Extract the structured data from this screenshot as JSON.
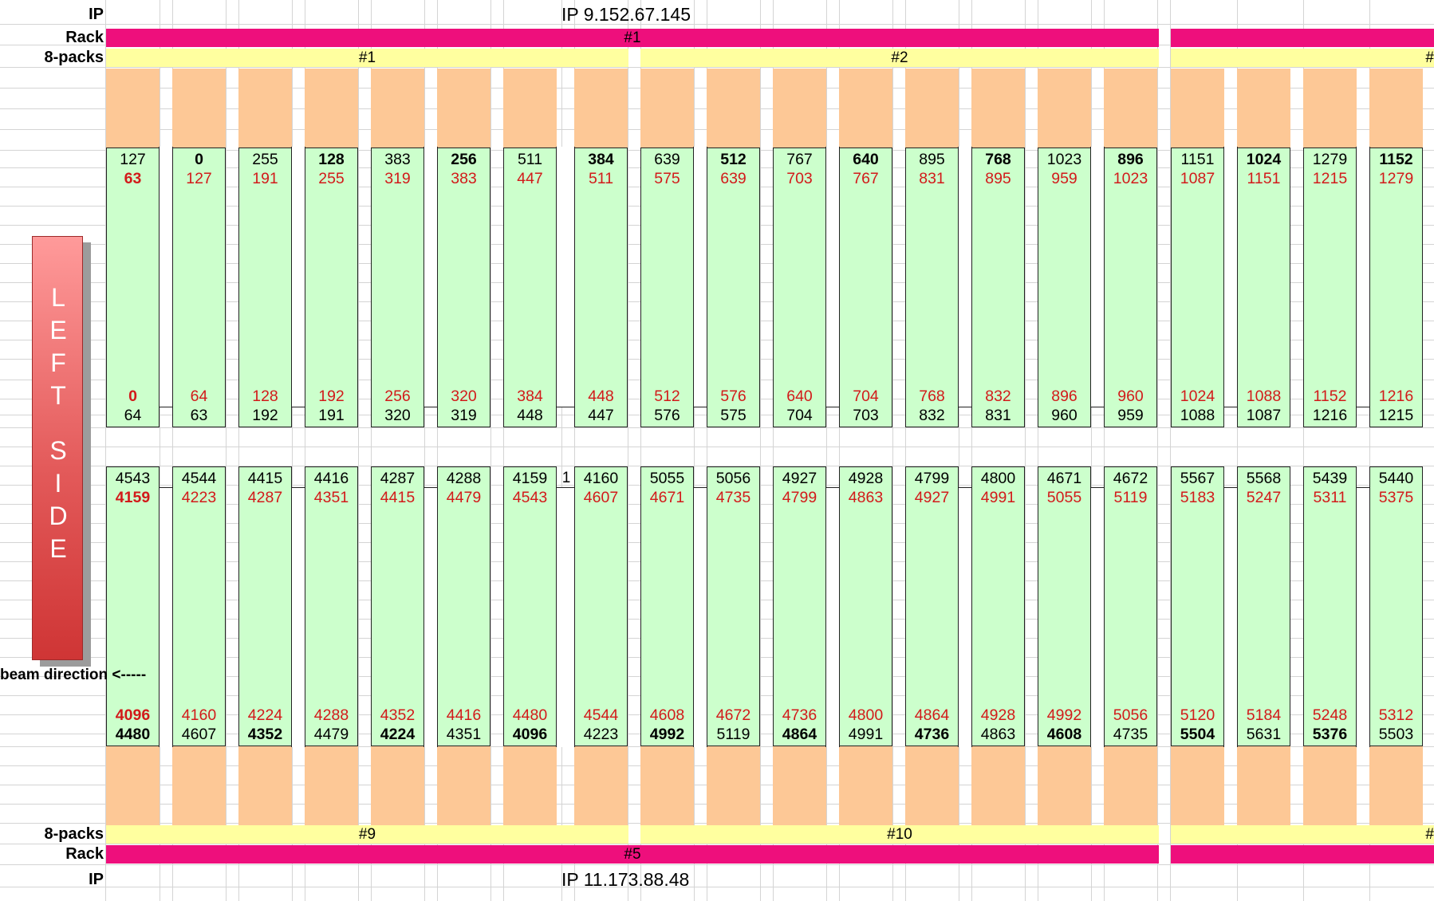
{
  "top": {
    "ip_label": "IP",
    "ip_value": "IP 9.152.67.145",
    "rack_label": "Rack",
    "rack_values": [
      "#1",
      ""
    ],
    "packs_label": "8-packs",
    "packs_values": [
      "#1",
      "#2",
      "#"
    ]
  },
  "bottom": {
    "ip_label": "IP",
    "ip_value": "IP 11.173.88.48",
    "rack_label": "Rack",
    "rack_values": [
      "#5",
      ""
    ],
    "packs_label": "8-packs",
    "packs_values": [
      "#9",
      "#10",
      "#"
    ]
  },
  "left_side_label": "LEFT SIDE",
  "beam_direction": "beam direction <-----",
  "colors": {
    "rack": "#ee0f7c",
    "eight_pack": "#ffff9f",
    "slot": "#ccffcc",
    "orange": "#fdc896",
    "red_text": "#d21a1a"
  },
  "upper_slots": [
    {
      "top": "127",
      "top_red": "63",
      "bot_red": "0",
      "bot": "64",
      "bold_top": false,
      "bold_top_red": true,
      "bold_bot_red": true,
      "bold_bot": false
    },
    {
      "top": "0",
      "top_red": "127",
      "bot_red": "64",
      "bot": "63",
      "bold_top": true,
      "bold_top_red": false,
      "bold_bot_red": false,
      "bold_bot": false
    },
    {
      "top": "255",
      "top_red": "191",
      "bot_red": "128",
      "bot": "192",
      "bold_top": false,
      "bold_top_red": false,
      "bold_bot_red": false,
      "bold_bot": false
    },
    {
      "top": "128",
      "top_red": "255",
      "bot_red": "192",
      "bot": "191",
      "bold_top": true,
      "bold_top_red": false,
      "bold_bot_red": false,
      "bold_bot": false
    },
    {
      "top": "383",
      "top_red": "319",
      "bot_red": "256",
      "bot": "320",
      "bold_top": false,
      "bold_top_red": false,
      "bold_bot_red": false,
      "bold_bot": false
    },
    {
      "top": "256",
      "top_red": "383",
      "bot_red": "320",
      "bot": "319",
      "bold_top": true,
      "bold_top_red": false,
      "bold_bot_red": false,
      "bold_bot": false
    },
    {
      "top": "511",
      "top_red": "447",
      "bot_red": "384",
      "bot": "448",
      "bold_top": false,
      "bold_top_red": false,
      "bold_bot_red": false,
      "bold_bot": false
    },
    {
      "top": "384",
      "top_red": "511",
      "bot_red": "448",
      "bot": "447",
      "bold_top": true,
      "bold_top_red": false,
      "bold_bot_red": false,
      "bold_bot": false
    },
    {
      "top": "639",
      "top_red": "575",
      "bot_red": "512",
      "bot": "576",
      "bold_top": false,
      "bold_top_red": false,
      "bold_bot_red": false,
      "bold_bot": false
    },
    {
      "top": "512",
      "top_red": "639",
      "bot_red": "576",
      "bot": "575",
      "bold_top": true,
      "bold_top_red": false,
      "bold_bot_red": false,
      "bold_bot": false
    },
    {
      "top": "767",
      "top_red": "703",
      "bot_red": "640",
      "bot": "704",
      "bold_top": false,
      "bold_top_red": false,
      "bold_bot_red": false,
      "bold_bot": false
    },
    {
      "top": "640",
      "top_red": "767",
      "bot_red": "704",
      "bot": "703",
      "bold_top": true,
      "bold_top_red": false,
      "bold_bot_red": false,
      "bold_bot": false
    },
    {
      "top": "895",
      "top_red": "831",
      "bot_red": "768",
      "bot": "832",
      "bold_top": false,
      "bold_top_red": false,
      "bold_bot_red": false,
      "bold_bot": false
    },
    {
      "top": "768",
      "top_red": "895",
      "bot_red": "832",
      "bot": "831",
      "bold_top": true,
      "bold_top_red": false,
      "bold_bot_red": false,
      "bold_bot": false
    },
    {
      "top": "1023",
      "top_red": "959",
      "bot_red": "896",
      "bot": "960",
      "bold_top": false,
      "bold_top_red": false,
      "bold_bot_red": false,
      "bold_bot": false
    },
    {
      "top": "896",
      "top_red": "1023",
      "bot_red": "960",
      "bot": "959",
      "bold_top": true,
      "bold_top_red": false,
      "bold_bot_red": false,
      "bold_bot": false
    },
    {
      "top": "1151",
      "top_red": "1087",
      "bot_red": "1024",
      "bot": "1088",
      "bold_top": false,
      "bold_top_red": false,
      "bold_bot_red": false,
      "bold_bot": false
    },
    {
      "top": "1024",
      "top_red": "1151",
      "bot_red": "1088",
      "bot": "1087",
      "bold_top": true,
      "bold_top_red": false,
      "bold_bot_red": false,
      "bold_bot": false
    },
    {
      "top": "1279",
      "top_red": "1215",
      "bot_red": "1152",
      "bot": "1216",
      "bold_top": false,
      "bold_top_red": false,
      "bold_bot_red": false,
      "bold_bot": false
    },
    {
      "top": "1152",
      "top_red": "1279",
      "bot_red": "1216",
      "bot": "1215",
      "bold_top": true,
      "bold_top_red": false,
      "bold_bot_red": false,
      "bold_bot": false
    }
  ],
  "lower_slots": [
    {
      "top": "4543",
      "top_red": "4159",
      "bot_red": "4096",
      "bot": "4480",
      "bold_top": false,
      "bold_top_red": true,
      "bold_bot_red": true,
      "bold_bot": true
    },
    {
      "top": "4544",
      "top_red": "4223",
      "bot_red": "4160",
      "bot": "4607",
      "bold_top": false,
      "bold_top_red": false,
      "bold_bot_red": false,
      "bold_bot": false
    },
    {
      "top": "4415",
      "top_red": "4287",
      "bot_red": "4224",
      "bot": "4352",
      "bold_top": false,
      "bold_top_red": false,
      "bold_bot_red": false,
      "bold_bot": true
    },
    {
      "top": "4416",
      "top_red": "4351",
      "bot_red": "4288",
      "bot": "4479",
      "bold_top": false,
      "bold_top_red": false,
      "bold_bot_red": false,
      "bold_bot": false
    },
    {
      "top": "4287",
      "top_red": "4415",
      "bot_red": "4352",
      "bot": "4224",
      "bold_top": false,
      "bold_top_red": false,
      "bold_bot_red": false,
      "bold_bot": true
    },
    {
      "top": "4288",
      "top_red": "4479",
      "bot_red": "4416",
      "bot": "4351",
      "bold_top": false,
      "bold_top_red": false,
      "bold_bot_red": false,
      "bold_bot": false
    },
    {
      "top": "4159",
      "top_red": "4543",
      "bot_red": "4480",
      "bot": "4096",
      "bold_top": false,
      "bold_top_red": false,
      "bold_bot_red": false,
      "bold_bot": true
    },
    {
      "top": "4160",
      "top_red": "4607",
      "bot_red": "4544",
      "bot": "4223",
      "bold_top": false,
      "bold_top_red": false,
      "bold_bot_red": false,
      "bold_bot": false
    },
    {
      "top": "5055",
      "top_red": "4671",
      "bot_red": "4608",
      "bot": "4992",
      "bold_top": false,
      "bold_top_red": false,
      "bold_bot_red": false,
      "bold_bot": true
    },
    {
      "top": "5056",
      "top_red": "4735",
      "bot_red": "4672",
      "bot": "5119",
      "bold_top": false,
      "bold_top_red": false,
      "bold_bot_red": false,
      "bold_bot": false
    },
    {
      "top": "4927",
      "top_red": "4799",
      "bot_red": "4736",
      "bot": "4864",
      "bold_top": false,
      "bold_top_red": false,
      "bold_bot_red": false,
      "bold_bot": true
    },
    {
      "top": "4928",
      "top_red": "4863",
      "bot_red": "4800",
      "bot": "4991",
      "bold_top": false,
      "bold_top_red": false,
      "bold_bot_red": false,
      "bold_bot": false
    },
    {
      "top": "4799",
      "top_red": "4927",
      "bot_red": "4864",
      "bot": "4736",
      "bold_top": false,
      "bold_top_red": false,
      "bold_bot_red": false,
      "bold_bot": true
    },
    {
      "top": "4800",
      "top_red": "4991",
      "bot_red": "4928",
      "bot": "4863",
      "bold_top": false,
      "bold_top_red": false,
      "bold_bot_red": false,
      "bold_bot": false
    },
    {
      "top": "4671",
      "top_red": "5055",
      "bot_red": "4992",
      "bot": "4608",
      "bold_top": false,
      "bold_top_red": false,
      "bold_bot_red": false,
      "bold_bot": true
    },
    {
      "top": "4672",
      "top_red": "5119",
      "bot_red": "5056",
      "bot": "4735",
      "bold_top": false,
      "bold_top_red": false,
      "bold_bot_red": false,
      "bold_bot": false
    },
    {
      "top": "5567",
      "top_red": "5183",
      "bot_red": "5120",
      "bot": "5504",
      "bold_top": false,
      "bold_top_red": false,
      "bold_bot_red": false,
      "bold_bot": true
    },
    {
      "top": "5568",
      "top_red": "5247",
      "bot_red": "5184",
      "bot": "5631",
      "bold_top": false,
      "bold_top_red": false,
      "bold_bot_red": false,
      "bold_bot": false
    },
    {
      "top": "5439",
      "top_red": "5311",
      "bot_red": "5248",
      "bot": "5376",
      "bold_top": false,
      "bold_top_red": false,
      "bold_bot_red": false,
      "bold_bot": true
    },
    {
      "top": "5440",
      "top_red": "5375",
      "bot_red": "5312",
      "bot": "5503",
      "bold_top": false,
      "bold_top_red": false,
      "bold_bot_red": false,
      "bold_bot": false
    }
  ],
  "lower_gap_note": "1"
}
